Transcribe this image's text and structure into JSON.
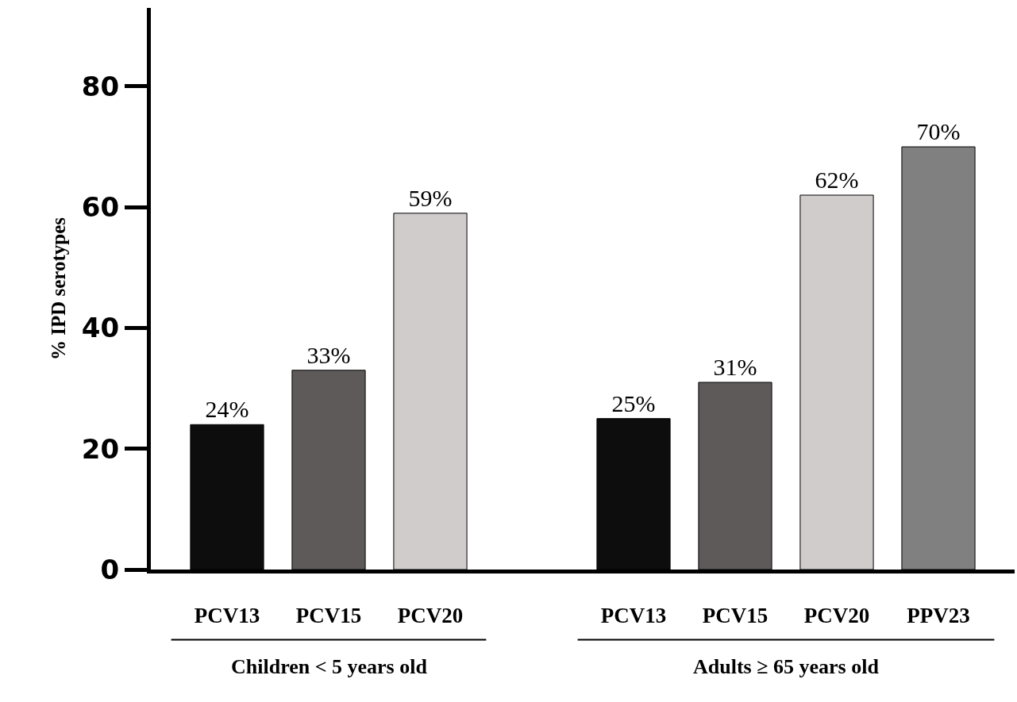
{
  "chart_data": {
    "type": "bar",
    "ylabel": "% IPD serotypes",
    "categories": [
      "PCV13",
      "PCV15",
      "PCV20",
      null,
      "PCV13",
      "PCV15",
      "PCV20",
      "PPV23"
    ],
    "values": [
      24,
      33,
      59,
      null,
      25,
      31,
      62,
      70
    ],
    "colors": [
      "#0d0d0d",
      "#5f5a5a",
      "#d0cccc",
      "#ffffff",
      "#0d0d0d",
      "#5f5a5a",
      "#d0cccc",
      "#808080"
    ],
    "value_labels": [
      "24%",
      "33%",
      "59%",
      null,
      "25%",
      "31%",
      "62%",
      "70%"
    ],
    "ylim": [
      0,
      93
    ],
    "yticks": [
      0,
      20,
      40,
      60,
      80
    ],
    "annotations": [
      "Children < 5 years old",
      "Adults ≥ 65 years old"
    ],
    "grid": false,
    "legend": false
  }
}
